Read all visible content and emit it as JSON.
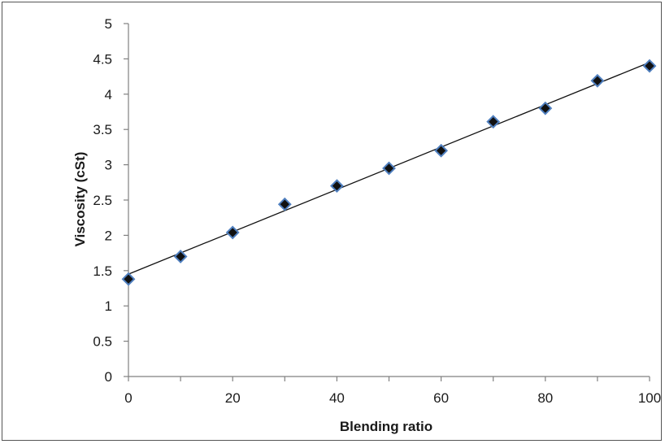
{
  "chart_data": {
    "type": "scatter",
    "title": "",
    "xlabel": "Blending ratio",
    "ylabel": "Viscosity (cSt)",
    "xlim": [
      0,
      100
    ],
    "ylim": [
      0,
      5
    ],
    "x_ticks": [
      0,
      20,
      40,
      60,
      80,
      100
    ],
    "y_ticks": [
      0,
      0.5,
      1,
      1.5,
      2,
      2.5,
      3,
      3.5,
      4,
      4.5,
      5
    ],
    "x_tick_labels": [
      "0",
      "20",
      "40",
      "60",
      "80",
      "100"
    ],
    "y_tick_labels": [
      "0",
      "0.5",
      "1",
      "1.5",
      "2",
      "2.5",
      "3",
      "3.5",
      "4",
      "4.5",
      "5"
    ],
    "grid": false,
    "legend": false,
    "series": [
      {
        "marker": "diamond",
        "marker_fill": "#111111",
        "marker_edge": "#4f7fbf",
        "x": [
          0,
          10,
          20,
          30,
          40,
          50,
          60,
          70,
          80,
          90,
          100
        ],
        "y": [
          1.38,
          1.7,
          2.04,
          2.44,
          2.7,
          2.95,
          3.2,
          3.61,
          3.8,
          4.19,
          4.4
        ]
      }
    ],
    "trendline": {
      "type": "linear",
      "x": [
        0,
        100
      ],
      "y": [
        1.45,
        4.45
      ],
      "color": "#111111"
    },
    "axis_color": "#808080"
  }
}
